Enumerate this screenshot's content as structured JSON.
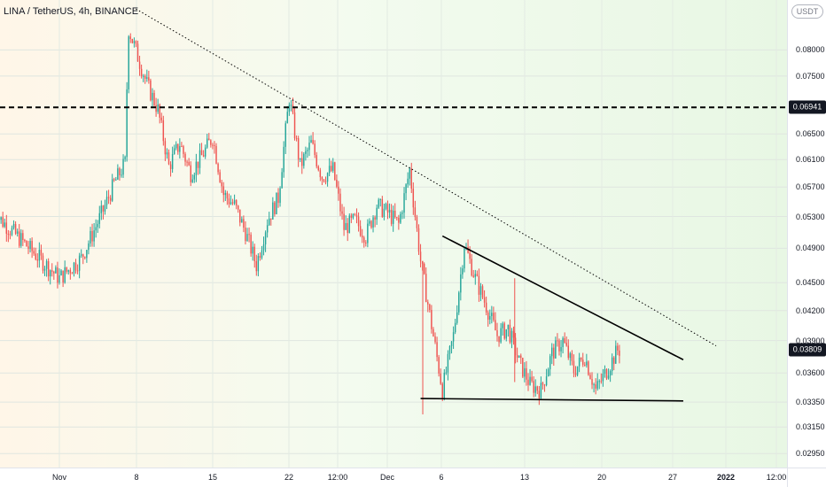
{
  "symbol": {
    "title": "LINA / TetherUS, 4h, BINANCE"
  },
  "price_axis": {
    "currency": "USDT",
    "ticks": [
      {
        "value": 0.08,
        "label": "0.08000"
      },
      {
        "value": 0.075,
        "label": "0.07500"
      },
      {
        "value": 0.065,
        "label": "0.06500"
      },
      {
        "value": 0.061,
        "label": "0.06100"
      },
      {
        "value": 0.057,
        "label": "0.05700"
      },
      {
        "value": 0.053,
        "label": "0.05300"
      },
      {
        "value": 0.049,
        "label": "0.04900"
      },
      {
        "value": 0.045,
        "label": "0.04500"
      },
      {
        "value": 0.042,
        "label": "0.04200"
      },
      {
        "value": 0.039,
        "label": "0.03900"
      },
      {
        "value": 0.036,
        "label": "0.03600"
      },
      {
        "value": 0.0335,
        "label": "0.03350"
      },
      {
        "value": 0.0315,
        "label": "0.03150"
      },
      {
        "value": 0.0295,
        "label": "0.02950"
      }
    ],
    "resistance_level": {
      "value": 0.06941,
      "label": "0.06941"
    },
    "last_price": {
      "value": 0.03809,
      "label": "0.03809"
    }
  },
  "time_axis": {
    "ticks": [
      {
        "label": "Nov",
        "bold": false
      },
      {
        "label": "8",
        "bold": false
      },
      {
        "label": "15",
        "bold": false
      },
      {
        "label": "22",
        "bold": false
      },
      {
        "label": "12:00",
        "bold": false
      },
      {
        "label": "Dec",
        "bold": false
      },
      {
        "label": "6",
        "bold": false
      },
      {
        "label": "13",
        "bold": false
      },
      {
        "label": "20",
        "bold": false
      },
      {
        "label": "27",
        "bold": false
      },
      {
        "label": "2022",
        "bold": true
      },
      {
        "label": "12:00",
        "bold": false
      }
    ]
  },
  "colors": {
    "bull": "#26a69a",
    "bear": "#ef5350",
    "line": "#000000"
  },
  "chart_data": {
    "type": "candlestick",
    "price_scale": "log",
    "interval": "4h",
    "ylim": [
      0.0285,
      0.0905
    ],
    "anchors": [
      {
        "value": 0.0535,
        "label": "early Nov"
      },
      {
        "value": 0.0455,
        "label": "Nov 1 low"
      },
      {
        "value": 0.0478,
        "label": "Nov 3"
      },
      {
        "value": 0.0538,
        "label": "Nov 5"
      },
      {
        "value": 0.0575,
        "label": "Nov 6"
      },
      {
        "value": 0.0605,
        "label": "Nov 7"
      },
      {
        "value": 0.0845,
        "label": "Nov 8 high"
      },
      {
        "value": 0.0735,
        "label": "Nov 9"
      },
      {
        "value": 0.069,
        "label": "Nov 10"
      },
      {
        "value": 0.06,
        "label": "Nov 11"
      },
      {
        "value": 0.0635,
        "label": "Nov 12"
      },
      {
        "value": 0.059,
        "label": "Nov 13"
      },
      {
        "value": 0.0615,
        "label": "Nov 14"
      },
      {
        "value": 0.0645,
        "label": "Nov 15"
      },
      {
        "value": 0.056,
        "label": "Nov 16"
      },
      {
        "value": 0.0545,
        "label": "Nov 17"
      },
      {
        "value": 0.051,
        "label": "Nov 18"
      },
      {
        "value": 0.047,
        "label": "Nov 19"
      },
      {
        "value": 0.0525,
        "label": "Nov 20"
      },
      {
        "value": 0.0555,
        "label": "Nov 21"
      },
      {
        "value": 0.071,
        "label": "Nov 22 high"
      },
      {
        "value": 0.06,
        "label": "Nov 23"
      },
      {
        "value": 0.0635,
        "label": "Nov 24"
      },
      {
        "value": 0.0585,
        "label": "Nov 25"
      },
      {
        "value": 0.0595,
        "label": "Nov 26"
      },
      {
        "value": 0.0515,
        "label": "Nov 27"
      },
      {
        "value": 0.0525,
        "label": "Nov 28"
      },
      {
        "value": 0.0505,
        "label": "Nov 29"
      },
      {
        "value": 0.0545,
        "label": "Nov 30"
      },
      {
        "value": 0.0535,
        "label": "Dec 1"
      },
      {
        "value": 0.052,
        "label": "Dec 2"
      },
      {
        "value": 0.0595,
        "label": "Dec 3 high"
      },
      {
        "value": 0.0475,
        "label": "Dec 4 drop"
      },
      {
        "value": 0.0325,
        "label": "Dec 4 wick low"
      },
      {
        "value": 0.0405,
        "label": "Dec 5"
      },
      {
        "value": 0.0345,
        "label": "Dec 6 low"
      },
      {
        "value": 0.0395,
        "label": "Dec 7"
      },
      {
        "value": 0.0495,
        "label": "Dec 8 high"
      },
      {
        "value": 0.0455,
        "label": "Dec 9"
      },
      {
        "value": 0.0425,
        "label": "Dec 10"
      },
      {
        "value": 0.0395,
        "label": "Dec 11"
      },
      {
        "value": 0.0402,
        "label": "Dec 12"
      },
      {
        "value": 0.037,
        "label": "Dec 13"
      },
      {
        "value": 0.035,
        "label": "Dec 14"
      },
      {
        "value": 0.0345,
        "label": "Dec 15"
      },
      {
        "value": 0.0378,
        "label": "Dec 16"
      },
      {
        "value": 0.039,
        "label": "Dec 17"
      },
      {
        "value": 0.0362,
        "label": "Dec 18"
      },
      {
        "value": 0.0375,
        "label": "Dec 19"
      },
      {
        "value": 0.0345,
        "label": "Dec 20 low"
      },
      {
        "value": 0.0362,
        "label": "Dec 21"
      },
      {
        "value": 0.03809,
        "label": "Dec 22 last"
      }
    ],
    "trendlines": [
      {
        "name": "long descending resistance",
        "style": "dotted",
        "from": {
          "date": "Nov 8",
          "price": 0.0885
        },
        "to": {
          "date": "Dec 31",
          "price": 0.0385
        }
      },
      {
        "name": "triangle upper",
        "style": "solid",
        "from": {
          "date": "Dec 6",
          "price": 0.0505
        },
        "to": {
          "date": "Dec 28",
          "price": 0.0372
        }
      },
      {
        "name": "triangle base support",
        "style": "solid",
        "from": {
          "date": "Dec 4",
          "price": 0.0338
        },
        "to": {
          "date": "Dec 28",
          "price": 0.0336
        }
      }
    ],
    "horizontal_levels": [
      {
        "price": 0.06941,
        "style": "dashed"
      }
    ]
  }
}
